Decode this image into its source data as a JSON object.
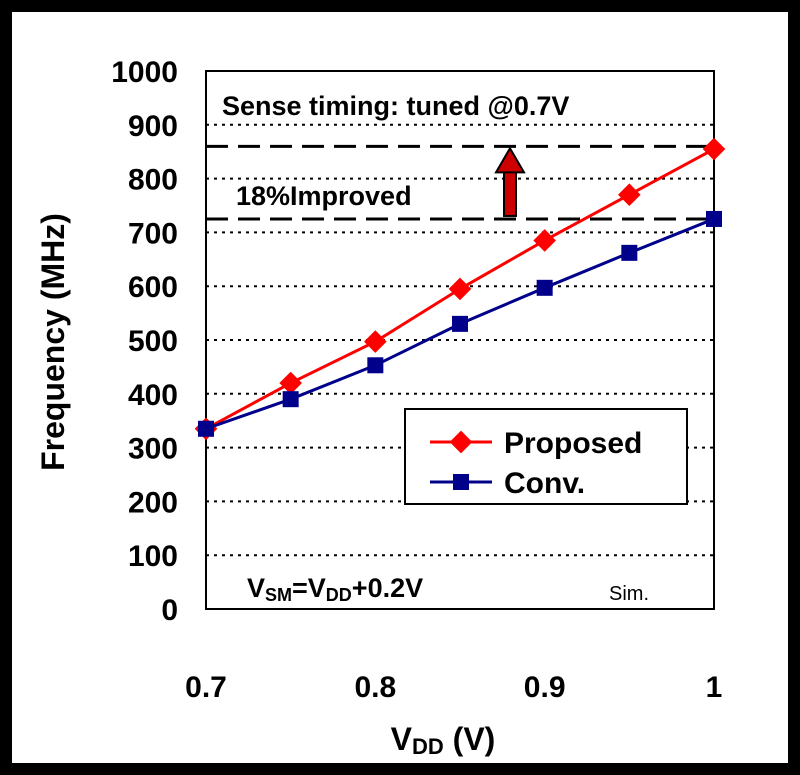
{
  "chart_data": {
    "type": "line",
    "x": [
      0.7,
      0.75,
      0.8,
      0.85,
      0.9,
      0.95,
      1.0
    ],
    "series": [
      {
        "name": "Proposed",
        "color": "#ff0000",
        "marker": "diamond",
        "values": [
          335,
          420,
          497,
          595,
          685,
          770,
          855
        ]
      },
      {
        "name": "Conv.",
        "color": "#00008b",
        "marker": "square",
        "values": [
          335,
          390,
          453,
          530,
          597,
          662,
          725
        ]
      }
    ],
    "xlabel": {
      "main": "V",
      "sub": "DD",
      "rest": " (V)"
    },
    "ylabel": "Frequency (MHz)",
    "xlim": [
      0.7,
      1.0
    ],
    "ylim": [
      0,
      1000
    ],
    "xticks": [
      "0.7",
      "0.8",
      "0.9",
      "1"
    ],
    "xtick_values": [
      0.7,
      0.8,
      0.9,
      1.0
    ],
    "yticks": [
      "0",
      "100",
      "200",
      "300",
      "400",
      "500",
      "600",
      "700",
      "800",
      "900",
      "1000"
    ],
    "ytick_values": [
      0,
      100,
      200,
      300,
      400,
      500,
      600,
      700,
      800,
      900,
      1000
    ],
    "grid": "horizontal dotted",
    "legend_position": "lower-right",
    "annotations": {
      "sense_timing": "Sense timing: tuned @0.7V",
      "improved": "18%Improved",
      "ref_high": 860,
      "ref_low": 725,
      "vsm_parts": [
        "V",
        "SM",
        "=V",
        "DD",
        "+0.2V"
      ],
      "sim": "Sim."
    },
    "arrow_color": "#cc0000"
  }
}
